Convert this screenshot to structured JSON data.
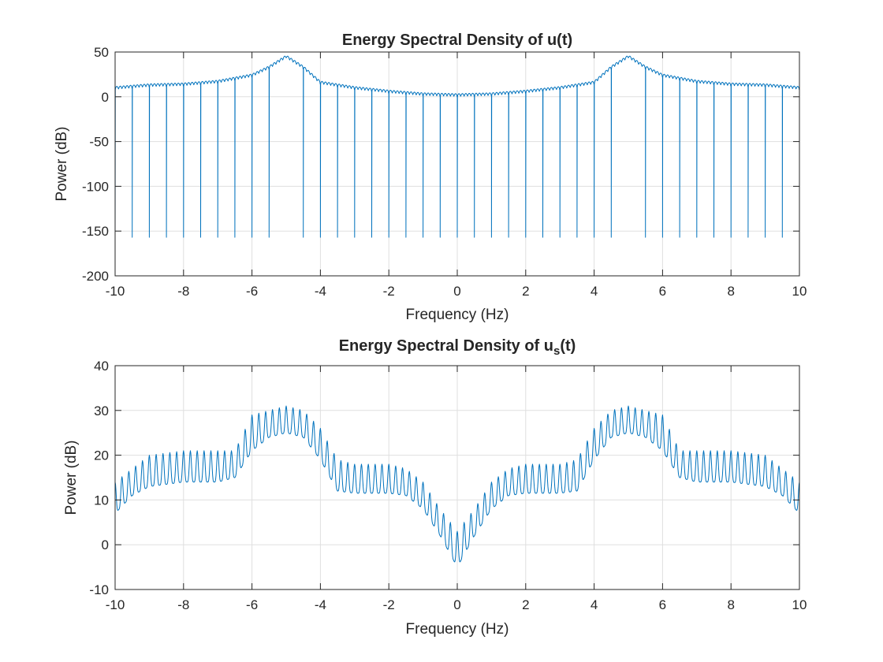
{
  "chart_data": [
    {
      "type": "line",
      "title": "Energy Spectral Density of u(t)",
      "xlabel": "Frequency (Hz)",
      "ylabel": "Power (dB)",
      "xlim": [
        -10,
        10
      ],
      "ylim": [
        -200,
        50
      ],
      "xticks": [
        -10,
        -8,
        -6,
        -4,
        -2,
        0,
        2,
        4,
        6,
        8,
        10
      ],
      "yticks": [
        50,
        0,
        -50,
        -100,
        -150,
        -200
      ],
      "grid": true,
      "line_color": "#0072bd",
      "description": "Ripple floor about 0-15 dB with peaks near 45 dB at f = -5 and f = 5; deep nulls reaching about -157 dB every 0.5 Hz (absent at f = -5 and f = 5).",
      "baseline_points": [
        {
          "f": -10,
          "p": 10
        },
        {
          "f": -9,
          "p": 13
        },
        {
          "f": -8,
          "p": 14
        },
        {
          "f": -7,
          "p": 17
        },
        {
          "f": -6,
          "p": 24
        },
        {
          "f": -5.5,
          "p": 33
        },
        {
          "f": -5,
          "p": 45
        },
        {
          "f": -4.5,
          "p": 33
        },
        {
          "f": -4,
          "p": 16
        },
        {
          "f": -3,
          "p": 10
        },
        {
          "f": -2,
          "p": 6
        },
        {
          "f": -1,
          "p": 3
        },
        {
          "f": 0,
          "p": 2
        },
        {
          "f": 1,
          "p": 3
        },
        {
          "f": 2,
          "p": 6
        },
        {
          "f": 3,
          "p": 10
        },
        {
          "f": 4,
          "p": 16
        },
        {
          "f": 4.5,
          "p": 33
        },
        {
          "f": 5,
          "p": 45
        },
        {
          "f": 5.5,
          "p": 33
        },
        {
          "f": 6,
          "p": 24
        },
        {
          "f": 7,
          "p": 17
        },
        {
          "f": 8,
          "p": 14
        },
        {
          "f": 9,
          "p": 13
        },
        {
          "f": 10,
          "p": 10
        }
      ],
      "null_level": -157,
      "null_spacing": 0.5,
      "null_exclusions": [
        -5,
        5
      ]
    },
    {
      "type": "line",
      "title": "Energy Spectral Density of u",
      "title_subscript": "s",
      "title_suffix": "(t)",
      "xlabel": "Frequency (Hz)",
      "ylabel": "Power (dB)",
      "xlim": [
        -10,
        10
      ],
      "ylim": [
        -10,
        40
      ],
      "xticks": [
        -10,
        -8,
        -6,
        -4,
        -2,
        0,
        2,
        4,
        6,
        8,
        10
      ],
      "yticks": [
        40,
        30,
        20,
        10,
        0,
        -10
      ],
      "grid": true,
      "line_color": "#0072bd",
      "description": "Oscillating trace (period about 0.2 Hz): lower envelope about 13-14 dB at |f| 7-9, peaks about 25-31 dB near |f| = 5, plateau about 11-18 dB at |f| 1.5-3.5, minimum about -5 dB at f = 0.",
      "lower_envelope": [
        {
          "f": 0,
          "p": -5
        },
        {
          "f": 0.5,
          "p": 2
        },
        {
          "f": 1,
          "p": 8
        },
        {
          "f": 1.5,
          "p": 11
        },
        {
          "f": 2,
          "p": 11.5
        },
        {
          "f": 3,
          "p": 11.5
        },
        {
          "f": 3.5,
          "p": 12
        },
        {
          "f": 4,
          "p": 19
        },
        {
          "f": 4.5,
          "p": 24
        },
        {
          "f": 5,
          "p": 25
        },
        {
          "f": 5.5,
          "p": 24
        },
        {
          "f": 6,
          "p": 21
        },
        {
          "f": 6.5,
          "p": 15
        },
        {
          "f": 7,
          "p": 14
        },
        {
          "f": 8,
          "p": 14
        },
        {
          "f": 9,
          "p": 13
        },
        {
          "f": 9.5,
          "p": 11
        },
        {
          "f": 10,
          "p": 7
        }
      ],
      "upper_envelope": [
        {
          "f": 0,
          "p": 3
        },
        {
          "f": 0.5,
          "p": 8
        },
        {
          "f": 1,
          "p": 14
        },
        {
          "f": 1.5,
          "p": 17
        },
        {
          "f": 2,
          "p": 18
        },
        {
          "f": 3,
          "p": 18
        },
        {
          "f": 3.5,
          "p": 19
        },
        {
          "f": 4,
          "p": 26
        },
        {
          "f": 4.5,
          "p": 30
        },
        {
          "f": 5,
          "p": 31
        },
        {
          "f": 5.5,
          "p": 30
        },
        {
          "f": 6,
          "p": 29
        },
        {
          "f": 6.5,
          "p": 21
        },
        {
          "f": 7,
          "p": 21
        },
        {
          "f": 8,
          "p": 21
        },
        {
          "f": 9,
          "p": 20
        },
        {
          "f": 9.5,
          "p": 17
        },
        {
          "f": 10,
          "p": 14
        }
      ],
      "oscillation_period": 0.2
    }
  ]
}
